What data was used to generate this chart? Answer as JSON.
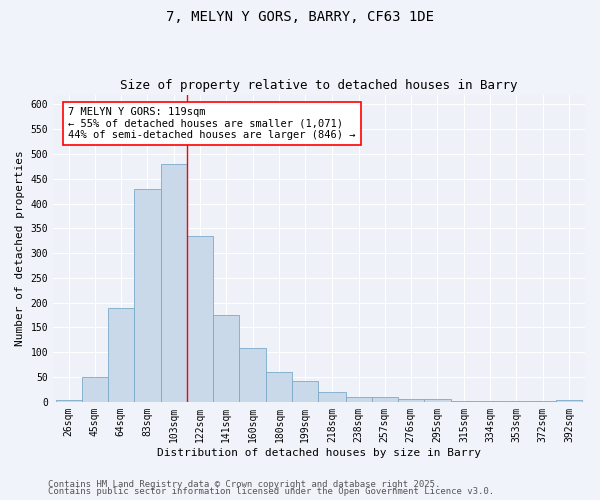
{
  "title1": "7, MELYN Y GORS, BARRY, CF63 1DE",
  "title2": "Size of property relative to detached houses in Barry",
  "xlabel": "Distribution of detached houses by size in Barry",
  "ylabel": "Number of detached properties",
  "bar_edges": [
    26,
    45,
    64,
    83,
    103,
    122,
    141,
    160,
    180,
    199,
    218,
    238,
    257,
    276,
    295,
    315,
    334,
    353,
    372,
    392,
    411
  ],
  "bar_heights": [
    3,
    50,
    190,
    430,
    480,
    335,
    175,
    108,
    60,
    42,
    20,
    10,
    10,
    6,
    5,
    2,
    2,
    1,
    1,
    3
  ],
  "bar_facecolor": "#c9d9ea",
  "bar_edgecolor": "#7aaac8",
  "vline_x": 122,
  "vline_color": "red",
  "annotation_text": "7 MELYN Y GORS: 119sqm\n← 55% of detached houses are smaller (1,071)\n44% of semi-detached houses are larger (846) →",
  "annotation_box_edgecolor": "red",
  "annotation_box_facecolor": "white",
  "ylim": [
    0,
    620
  ],
  "yticks": [
    0,
    50,
    100,
    150,
    200,
    250,
    300,
    350,
    400,
    450,
    500,
    550,
    600
  ],
  "bg_color": "#f0f4fa",
  "plot_bg_color": "#eef2f8",
  "footer1": "Contains HM Land Registry data © Crown copyright and database right 2025.",
  "footer2": "Contains public sector information licensed under the Open Government Licence v3.0.",
  "title1_fontsize": 10,
  "title2_fontsize": 9,
  "xlabel_fontsize": 8,
  "ylabel_fontsize": 8,
  "tick_fontsize": 7,
  "footer_fontsize": 6.5,
  "annot_fontsize": 7.5
}
